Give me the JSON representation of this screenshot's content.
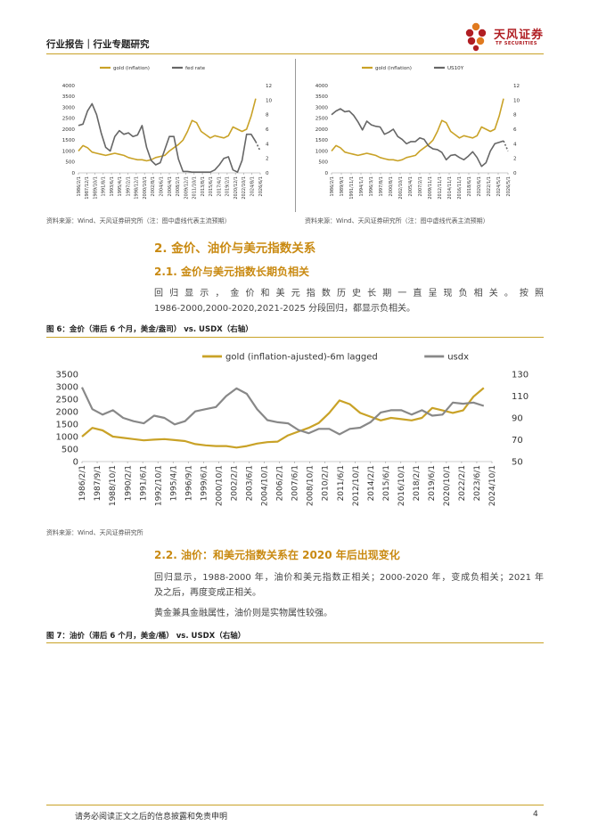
{
  "header": {
    "title": "行业报告｜行业专题研究",
    "brand_name": "天风证券",
    "brand_sub": "TF SECURITIES",
    "brand_colors": {
      "red": "#b01e23",
      "orange": "#e07a1f",
      "gold": "#c9a227"
    }
  },
  "sources": {
    "left": "资料来源：Wind、天风证券研究所（注：图中虚线代表主流预期）",
    "right": "资料来源：Wind、天风证券研究所（注：图中虚线代表主流预期）",
    "fig6": "资料来源：Wind、天风证券研究所"
  },
  "sections": {
    "h2": "2. 金价、油价与美元指数关系",
    "s21": {
      "title": "2.1. 金价与美元指数长期负相关",
      "para_line1": "回归显示，金价和美元指数历史长期一直呈现负相关。按照",
      "para_line2": "1986-2000,2000-2020,2021-2025 分段回归，都显示负相关。"
    },
    "fig6_caption": "图 6：金价（滞后 6 个月，美金/盎司） vs. USDX（右轴）",
    "s22": {
      "title": "2.2. 油价：和美元指数关系在 2020 年后出现变化",
      "para1_line1": "回归显示，1988-2000 年，油价和美元指数正相关；2000-2020 年，变成负相关；2021 年",
      "para1_line2": "及之后，再度变成正相关。",
      "para2": "黄金兼具金融属性，油价则是实物属性较强。"
    },
    "fig7_caption": "图 7：油价（滞后 6 个月，美金/桶） vs. USDX（右轴）"
  },
  "footer": {
    "disclaimer": "请务必阅读正文之后的信息披露和免责申明",
    "page": "4"
  },
  "chart_data": [
    {
      "type": "line",
      "legend": [
        "gold (inflation)",
        "fed rate"
      ],
      "legend_position": "top",
      "ylim": [
        0,
        4000
      ],
      "y_ticks": [
        "0",
        "500",
        "1000",
        "1500",
        "2000",
        "2500",
        "3000",
        "3500",
        "4000"
      ],
      "y2lim": [
        0,
        12
      ],
      "y2_ticks": [
        "0",
        "2",
        "4",
        "6",
        "8",
        "10",
        "12"
      ],
      "x_ticks": [
        "1986/2/1",
        "1987/12/1",
        "1989/10/1",
        "1991/8/1",
        "1993/6/1",
        "1995/4/1",
        "1997/2/1",
        "1998/12/1",
        "2000/10/1",
        "2002/8/1",
        "2004/6/1",
        "2006/4/1",
        "2008/2/1",
        "2009/12/1",
        "2011/10/1",
        "2013/8/1",
        "2015/6/1",
        "2017/4/1",
        "2019/2/1",
        "2020/12/1",
        "2022/10/1",
        "2024/8/1",
        "2026/6/1"
      ],
      "series": [
        {
          "name": "gold (inflation)",
          "color": "#c9a227",
          "axis": "left",
          "x": [
            1986,
            1987,
            1988,
            1989,
            1990,
            1991,
            1992,
            1993,
            1994,
            1995,
            1996,
            1997,
            1998,
            1999,
            2000,
            2001,
            2002,
            2003,
            2004,
            2005,
            2006,
            2007,
            2008,
            2009,
            2010,
            2011,
            2012,
            2013,
            2014,
            2015,
            2016,
            2017,
            2018,
            2019,
            2020,
            2021,
            2022,
            2023,
            2024,
            2025
          ],
          "values": [
            1000,
            1250,
            1150,
            950,
            900,
            850,
            800,
            850,
            900,
            850,
            800,
            700,
            650,
            600,
            600,
            550,
            600,
            700,
            750,
            800,
            1000,
            1150,
            1300,
            1500,
            1900,
            2400,
            2300,
            1900,
            1750,
            1600,
            1700,
            1650,
            1600,
            1700,
            2100,
            2000,
            1900,
            2000,
            2600,
            3400
          ]
        },
        {
          "name": "fed rate",
          "color": "#666666",
          "axis": "right",
          "x": [
            1986,
            1987,
            1988,
            1989,
            1990,
            1991,
            1992,
            1993,
            1994,
            1995,
            1996,
            1997,
            1998,
            1999,
            2000,
            2001,
            2002,
            2003,
            2004,
            2005,
            2006,
            2007,
            2008,
            2009,
            2010,
            2011,
            2012,
            2013,
            2014,
            2015,
            2016,
            2017,
            2018,
            2019,
            2020,
            2021,
            2022,
            2023,
            2024,
            2025
          ],
          "values": [
            6.5,
            6.7,
            8.5,
            9.5,
            8.0,
            5.5,
            3.5,
            3.0,
            5.0,
            5.8,
            5.3,
            5.5,
            5.0,
            5.2,
            6.5,
            3.5,
            1.7,
            1.1,
            1.4,
            3.2,
            5.0,
            5.0,
            1.9,
            0.2,
            0.2,
            0.1,
            0.1,
            0.1,
            0.1,
            0.1,
            0.4,
            1.1,
            2.0,
            2.2,
            0.4,
            0.1,
            1.7,
            5.3,
            5.3,
            4.3
          ]
        },
        {
          "name": "fed rate",
          "color": "#666666",
          "axis": "right",
          "dashed": true,
          "x": [
            2025,
            2026
          ],
          "values": [
            4.3,
            3.0
          ]
        }
      ]
    },
    {
      "type": "line",
      "legend": [
        "gold (inflation)",
        "US10Y"
      ],
      "legend_position": "top",
      "ylim": [
        0,
        4000
      ],
      "y_ticks": [
        "0",
        "500",
        "1000",
        "1500",
        "2000",
        "2500",
        "3000",
        "3500",
        "4000"
      ],
      "y2lim": [
        0,
        12
      ],
      "y2_ticks": [
        "0",
        "2",
        "4",
        "6",
        "8",
        "10",
        "12"
      ],
      "x_ticks": [
        "1986/2/1",
        "1989/9/1",
        "1991/11/1",
        "1994/1/1",
        "1996/3/1",
        "1997/8/1",
        "2000/8/1",
        "2002/10/1",
        "2005/4/1",
        "2007/2/1",
        "2009/11/1",
        "2012/11/1",
        "2014/11/1",
        "2016/11/1",
        "2018/6/1",
        "2020/6/1",
        "2022/1/1",
        "2024/5/1",
        "2026/5/1"
      ],
      "series": [
        {
          "name": "gold (inflation)",
          "color": "#c9a227",
          "axis": "left",
          "x": [
            1986,
            1987,
            1988,
            1989,
            1990,
            1991,
            1992,
            1993,
            1994,
            1995,
            1996,
            1997,
            1998,
            1999,
            2000,
            2001,
            2002,
            2003,
            2004,
            2005,
            2006,
            2007,
            2008,
            2009,
            2010,
            2011,
            2012,
            2013,
            2014,
            2015,
            2016,
            2017,
            2018,
            2019,
            2020,
            2021,
            2022,
            2023,
            2024,
            2025
          ],
          "values": [
            1000,
            1250,
            1150,
            950,
            900,
            850,
            800,
            850,
            900,
            850,
            800,
            700,
            650,
            600,
            600,
            550,
            600,
            700,
            750,
            800,
            1000,
            1150,
            1300,
            1500,
            1900,
            2400,
            2300,
            1900,
            1750,
            1600,
            1700,
            1650,
            1600,
            1700,
            2100,
            2000,
            1900,
            2000,
            2600,
            3400
          ]
        },
        {
          "name": "US10Y",
          "color": "#666666",
          "axis": "right",
          "x": [
            1986,
            1987,
            1988,
            1989,
            1990,
            1991,
            1992,
            1993,
            1994,
            1995,
            1996,
            1997,
            1998,
            1999,
            2000,
            2001,
            2002,
            2003,
            2004,
            2005,
            2006,
            2007,
            2008,
            2009,
            2010,
            2011,
            2012,
            2013,
            2014,
            2015,
            2016,
            2017,
            2018,
            2019,
            2020,
            2021,
            2022,
            2023,
            2024,
            2025
          ],
          "values": [
            8.0,
            8.5,
            8.8,
            8.4,
            8.5,
            7.9,
            7.0,
            5.9,
            7.1,
            6.6,
            6.4,
            6.3,
            5.3,
            5.6,
            6.0,
            5.0,
            4.6,
            4.0,
            4.3,
            4.3,
            4.8,
            4.6,
            3.7,
            3.3,
            3.2,
            2.8,
            1.8,
            2.4,
            2.5,
            2.1,
            1.8,
            2.3,
            2.9,
            2.1,
            0.9,
            1.4,
            3.0,
            4.0,
            4.2,
            4.4
          ]
        },
        {
          "name": "US10Y",
          "color": "#666666",
          "axis": "right",
          "dashed": true,
          "x": [
            2025,
            2026
          ],
          "values": [
            4.4,
            3.0
          ]
        }
      ]
    },
    {
      "type": "line",
      "legend": [
        "gold (inflation-ajusted)-6m lagged",
        "usdx"
      ],
      "legend_position": "top",
      "ylim": [
        0,
        3500
      ],
      "y_ticks": [
        "0",
        "500",
        "1000",
        "1500",
        "2000",
        "2500",
        "3000",
        "3500"
      ],
      "y2lim": [
        50,
        130
      ],
      "y2_ticks": [
        "50",
        "70",
        "90",
        "110",
        "130"
      ],
      "x_ticks": [
        "1986/2/1",
        "1987/9/1",
        "1988/10/1",
        "1990/2/1",
        "1991/6/1",
        "1992/10/1",
        "1995/4/1",
        "1996/9/1",
        "1999/6/1",
        "2000/10/1",
        "2002/2/1",
        "2003/6/1",
        "2004/10/1",
        "2006/2/1",
        "2007/6/1",
        "2008/10/1",
        "2010/2/1",
        "2011/6/1",
        "2012/10/1",
        "2014/2/1",
        "2015/6/1",
        "2016/10/1",
        "2018/2/1",
        "2019/6/1",
        "2020/10/1",
        "2022/2/1",
        "2023/6/1",
        "2024/10/1"
      ],
      "series": [
        {
          "name": "gold (inflation-ajusted)-6m lagged",
          "color": "#c9a227",
          "axis": "left",
          "x": [
            1986,
            1987,
            1988,
            1989,
            1990,
            1991,
            1992,
            1993,
            1994,
            1995,
            1996,
            1997,
            1998,
            1999,
            2000,
            2001,
            2002,
            2003,
            2004,
            2005,
            2006,
            2007,
            2008,
            2009,
            2010,
            2011,
            2012,
            2013,
            2014,
            2015,
            2016,
            2017,
            2018,
            2019,
            2020,
            2021,
            2022,
            2023,
            2024,
            2025
          ],
          "values": [
            1000,
            1350,
            1250,
            1000,
            950,
            900,
            850,
            880,
            900,
            860,
            820,
            700,
            650,
            620,
            620,
            560,
            620,
            720,
            780,
            800,
            1050,
            1200,
            1350,
            1550,
            1950,
            2450,
            2300,
            1950,
            1800,
            1650,
            1750,
            1700,
            1650,
            1750,
            2150,
            2050,
            1950,
            2050,
            2600,
            2950
          ]
        },
        {
          "name": "usdx",
          "color": "#888888",
          "axis": "right",
          "x": [
            1986,
            1987,
            1988,
            1989,
            1990,
            1991,
            1992,
            1993,
            1994,
            1995,
            1996,
            1997,
            1998,
            1999,
            2000,
            2001,
            2002,
            2003,
            2004,
            2005,
            2006,
            2007,
            2008,
            2009,
            2010,
            2011,
            2012,
            2013,
            2014,
            2015,
            2016,
            2017,
            2018,
            2019,
            2020,
            2021,
            2022,
            2023,
            2024,
            2025
          ],
          "values": [
            118,
            98,
            93,
            97,
            90,
            87,
            85,
            92,
            90,
            84,
            87,
            96,
            98,
            100,
            110,
            117,
            112,
            98,
            88,
            86,
            85,
            79,
            76,
            80,
            80,
            75,
            80,
            81,
            86,
            95,
            97,
            97,
            93,
            97,
            92,
            93,
            104,
            103,
            104,
            101
          ]
        }
      ]
    }
  ]
}
